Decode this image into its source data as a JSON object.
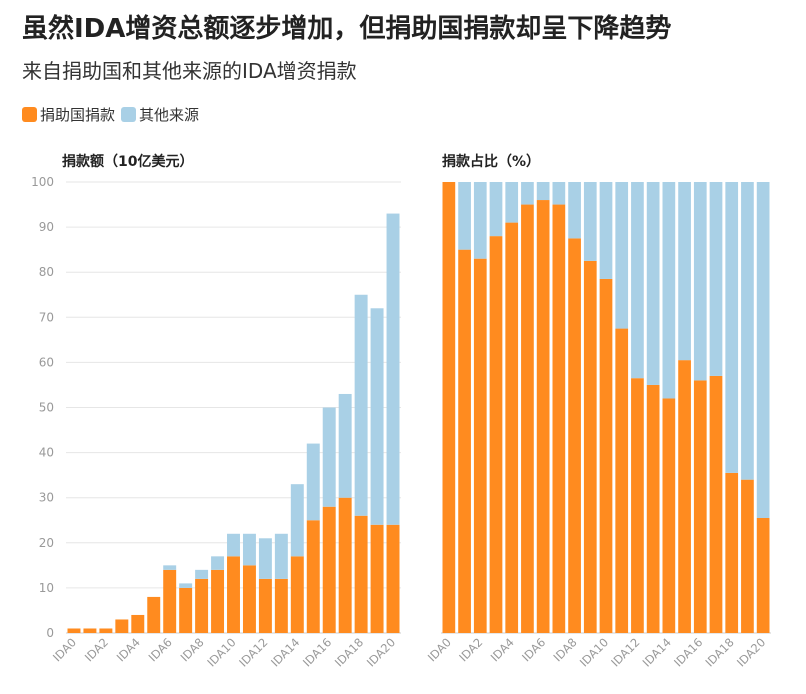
{
  "title": "虽然IDA增资总额逐步增加，但捐助国捐款却呈下降趋势",
  "subtitle": "来自捐助国和其他来源的IDA增资捐款",
  "legend": [
    {
      "label": "捐助国捐款",
      "color": "#ff8b1f"
    },
    {
      "label": "其他来源",
      "color": "#a9d0e6"
    }
  ],
  "chart_data": [
    {
      "type": "bar",
      "stacked": true,
      "title": "捐款额（10亿美元）",
      "ylim": [
        0,
        100
      ],
      "yticks": [
        0,
        10,
        20,
        30,
        40,
        50,
        60,
        70,
        80,
        90,
        100
      ],
      "categories": [
        "IDA0",
        "IDA1",
        "IDA2",
        "IDA3",
        "IDA4",
        "IDA5",
        "IDA6",
        "IDA7",
        "IDA8",
        "IDA9",
        "IDA10",
        "IDA11",
        "IDA12",
        "IDA13",
        "IDA14",
        "IDA15",
        "IDA16",
        "IDA17",
        "IDA18",
        "IDA19",
        "IDA20"
      ],
      "tick_labels": [
        "IDA0",
        "",
        "IDA2",
        "",
        "IDA4",
        "",
        "IDA6",
        "",
        "IDA8",
        "",
        "IDA10",
        "",
        "IDA12",
        "",
        "IDA14",
        "",
        "IDA16",
        "",
        "IDA18",
        "",
        "IDA20"
      ],
      "series": [
        {
          "name": "捐助国捐款",
          "values": [
            1,
            1,
            1,
            3,
            4,
            8,
            14,
            10,
            12,
            14,
            17,
            15,
            12,
            12,
            17,
            25,
            28,
            30,
            26,
            24,
            24
          ]
        },
        {
          "name": "其他来源",
          "values": [
            0,
            0,
            0,
            0,
            0,
            0,
            1,
            1,
            2,
            3,
            5,
            7,
            9,
            10,
            16,
            17,
            22,
            23,
            49,
            48,
            69
          ]
        }
      ]
    },
    {
      "type": "bar",
      "stacked": true,
      "title": "捐款占比（%）",
      "ylim": [
        0,
        100
      ],
      "categories": [
        "IDA0",
        "IDA1",
        "IDA2",
        "IDA3",
        "IDA4",
        "IDA5",
        "IDA6",
        "IDA7",
        "IDA8",
        "IDA9",
        "IDA10",
        "IDA11",
        "IDA12",
        "IDA13",
        "IDA14",
        "IDA15",
        "IDA16",
        "IDA17",
        "IDA18",
        "IDA19",
        "IDA20"
      ],
      "tick_labels": [
        "IDA0",
        "",
        "IDA2",
        "",
        "IDA4",
        "",
        "IDA6",
        "",
        "IDA8",
        "",
        "IDA10",
        "",
        "IDA12",
        "",
        "IDA14",
        "",
        "IDA16",
        "",
        "IDA18",
        "",
        "IDA20"
      ],
      "series": [
        {
          "name": "捐助国捐款",
          "values": [
            100,
            85,
            83,
            88,
            91,
            95,
            96,
            95,
            87.5,
            82.5,
            78.5,
            67.5,
            56.5,
            55,
            52,
            60.5,
            56,
            57,
            35.5,
            34,
            25.5
          ]
        },
        {
          "name": "其他来源",
          "values": [
            0,
            15,
            17,
            12,
            9,
            5,
            4,
            5,
            12.5,
            17.5,
            21.5,
            32.5,
            43.5,
            45,
            48,
            39.5,
            44,
            43,
            64.5,
            66,
            74.5
          ]
        }
      ]
    }
  ]
}
